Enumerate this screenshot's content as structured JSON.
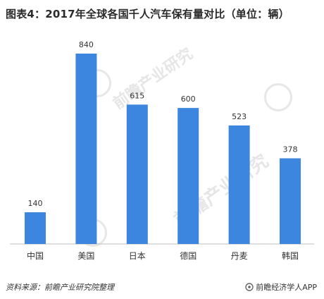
{
  "title": "图表4：2017年全球各国千人汽车保有量对比（单位：辆）",
  "footer": {
    "source": "资料来源：前瞻产业研究院整理",
    "brand": "前瞻经济学人APP"
  },
  "watermark_text": "前瞻产业研究",
  "colors": {
    "bar": "#3d86e0",
    "axis": "#bfbfbf",
    "text": "#333333"
  },
  "chart_data": {
    "type": "bar",
    "title": "图表4：2017年全球各国千人汽车保有量对比（单位：辆）",
    "categories": [
      "中国",
      "美国",
      "日本",
      "德国",
      "丹麦",
      "韩国"
    ],
    "values": [
      140,
      840,
      615,
      600,
      523,
      378
    ],
    "xlabel": "",
    "ylabel": "",
    "ylim": [
      0,
      900
    ],
    "grid": false,
    "legend": "none",
    "data_labels": true
  }
}
